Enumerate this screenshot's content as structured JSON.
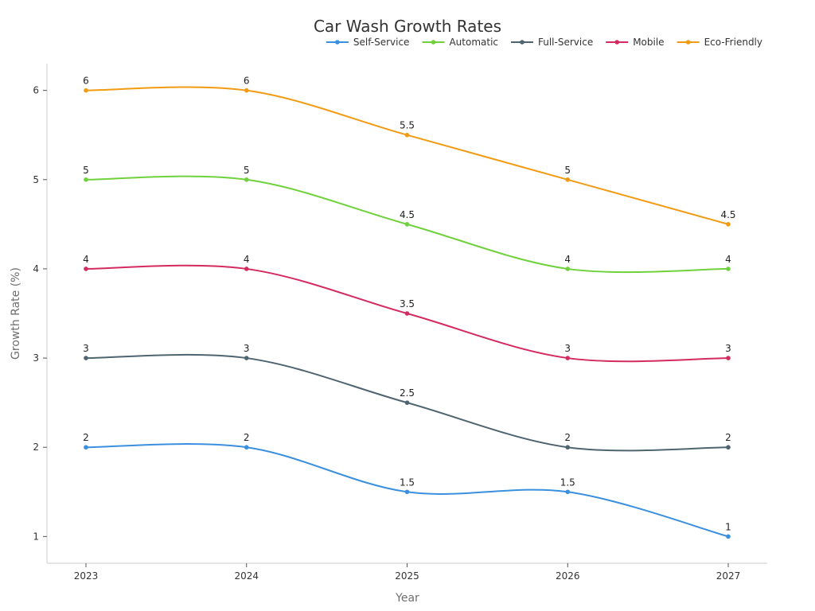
{
  "chart_data": {
    "type": "line",
    "title": "Car Wash Growth Rates",
    "xlabel": "Year",
    "ylabel": "Growth Rate (%)",
    "categories": [
      "2023",
      "2024",
      "2025",
      "2026",
      "2027"
    ],
    "yticks": [
      1,
      2,
      3,
      4,
      5,
      6
    ],
    "ylim": [
      0.7,
      6.3
    ],
    "grid": false,
    "legend_position": "top-right",
    "smooth": true,
    "series": [
      {
        "name": "Self-Service",
        "color": "#3a8fde",
        "values": [
          2,
          2,
          1.5,
          1.5,
          1
        ],
        "labels": [
          "2",
          "2",
          "1.5",
          "1.5",
          "1"
        ]
      },
      {
        "name": "Automatic",
        "color": "#6fd13c",
        "values": [
          5,
          5,
          4.5,
          4,
          4
        ],
        "labels": [
          "5",
          "5",
          "4.5",
          "4",
          "4"
        ]
      },
      {
        "name": "Full-Service",
        "color": "#4e6470",
        "values": [
          3,
          3,
          2.5,
          2,
          2
        ],
        "labels": [
          "3",
          "3",
          "2.5",
          "2",
          "2"
        ]
      },
      {
        "name": "Mobile",
        "color": "#d42a5f",
        "values": [
          4,
          4,
          3.5,
          3,
          3
        ],
        "labels": [
          "4",
          "4",
          "3.5",
          "3",
          "3"
        ]
      },
      {
        "name": "Eco-Friendly",
        "color": "#f29b12",
        "values": [
          6,
          6,
          5.5,
          5,
          4.5
        ],
        "labels": [
          "6",
          "6",
          "5.5",
          "5",
          "4.5"
        ]
      }
    ]
  }
}
